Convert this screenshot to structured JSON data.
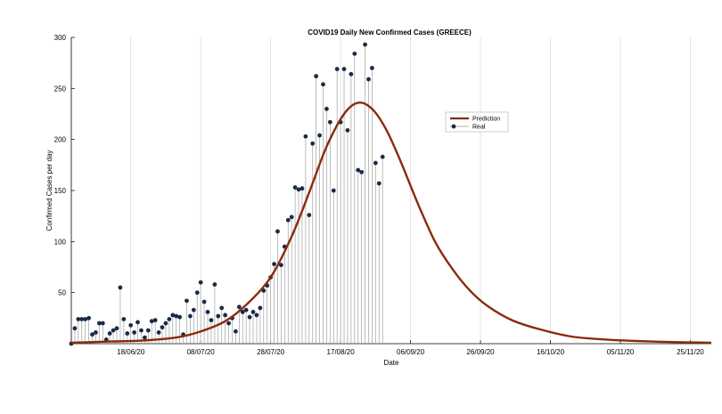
{
  "chart_data": {
    "type": "line",
    "title": "COVID19 Daily New Confirmed Cases (GREECE)",
    "xlabel": "Date",
    "ylabel": "Confirmed Cases per day",
    "ylim": [
      0,
      300
    ],
    "xlim": [
      "2020-06-01",
      "2020-12-01"
    ],
    "grid": "vertical",
    "legend_position": "upper-right",
    "y_ticks": [
      50,
      100,
      150,
      200,
      250,
      300
    ],
    "x_ticks": [
      {
        "date": "2020-06-18",
        "label": "18/06/20"
      },
      {
        "date": "2020-07-08",
        "label": "08/07/20"
      },
      {
        "date": "2020-07-28",
        "label": "28/07/20"
      },
      {
        "date": "2020-08-17",
        "label": "17/08/20"
      },
      {
        "date": "2020-09-06",
        "label": "06/09/20"
      },
      {
        "date": "2020-09-26",
        "label": "26/09/20"
      },
      {
        "date": "2020-10-16",
        "label": "16/10/20"
      },
      {
        "date": "2020-11-05",
        "label": "05/11/20"
      },
      {
        "date": "2020-11-25",
        "label": "25/11/20"
      }
    ],
    "series": [
      {
        "name": "Prediction",
        "style": "line",
        "color": "#8b2a0a",
        "points": [
          [
            "2020-06-01",
            1
          ],
          [
            "2020-06-11",
            2
          ],
          [
            "2020-06-21",
            3
          ],
          [
            "2020-07-01",
            6
          ],
          [
            "2020-07-08",
            12
          ],
          [
            "2020-07-15",
            22
          ],
          [
            "2020-07-21",
            38
          ],
          [
            "2020-07-28",
            65
          ],
          [
            "2020-08-03",
            105
          ],
          [
            "2020-08-08",
            148
          ],
          [
            "2020-08-13",
            193
          ],
          [
            "2020-08-18",
            225
          ],
          [
            "2020-08-22",
            236
          ],
          [
            "2020-08-26",
            230
          ],
          [
            "2020-08-30",
            210
          ],
          [
            "2020-09-03",
            180
          ],
          [
            "2020-09-08",
            138
          ],
          [
            "2020-09-13",
            100
          ],
          [
            "2020-09-18",
            73
          ],
          [
            "2020-09-23",
            52
          ],
          [
            "2020-09-28",
            37
          ],
          [
            "2020-10-05",
            23
          ],
          [
            "2020-10-13",
            14
          ],
          [
            "2020-10-22",
            7
          ],
          [
            "2020-11-01",
            4
          ],
          [
            "2020-11-15",
            2
          ],
          [
            "2020-12-01",
            1
          ]
        ]
      },
      {
        "name": "Real",
        "style": "stem",
        "color": "#1a2a48",
        "points": [
          [
            "2020-06-01",
            0
          ],
          [
            "2020-06-02",
            15
          ],
          [
            "2020-06-03",
            24
          ],
          [
            "2020-06-04",
            24
          ],
          [
            "2020-06-05",
            24
          ],
          [
            "2020-06-06",
            25
          ],
          [
            "2020-06-07",
            9
          ],
          [
            "2020-06-08",
            11
          ],
          [
            "2020-06-09",
            20
          ],
          [
            "2020-06-10",
            20
          ],
          [
            "2020-06-11",
            4
          ],
          [
            "2020-06-12",
            10
          ],
          [
            "2020-06-13",
            13
          ],
          [
            "2020-06-14",
            15
          ],
          [
            "2020-06-15",
            55
          ],
          [
            "2020-06-16",
            24
          ],
          [
            "2020-06-17",
            10
          ],
          [
            "2020-06-18",
            18
          ],
          [
            "2020-06-19",
            11
          ],
          [
            "2020-06-20",
            21
          ],
          [
            "2020-06-21",
            13
          ],
          [
            "2020-06-22",
            6
          ],
          [
            "2020-06-23",
            13
          ],
          [
            "2020-06-24",
            22
          ],
          [
            "2020-06-25",
            23
          ],
          [
            "2020-06-26",
            11
          ],
          [
            "2020-06-27",
            16
          ],
          [
            "2020-06-28",
            20
          ],
          [
            "2020-06-29",
            24
          ],
          [
            "2020-06-30",
            28
          ],
          [
            "2020-07-01",
            27
          ],
          [
            "2020-07-02",
            26
          ],
          [
            "2020-07-03",
            9
          ],
          [
            "2020-07-04",
            42
          ],
          [
            "2020-07-05",
            27
          ],
          [
            "2020-07-06",
            33
          ],
          [
            "2020-07-07",
            50
          ],
          [
            "2020-07-08",
            60
          ],
          [
            "2020-07-09",
            41
          ],
          [
            "2020-07-10",
            31
          ],
          [
            "2020-07-11",
            23
          ],
          [
            "2020-07-12",
            58
          ],
          [
            "2020-07-13",
            27
          ],
          [
            "2020-07-14",
            35
          ],
          [
            "2020-07-15",
            28
          ],
          [
            "2020-07-16",
            20
          ],
          [
            "2020-07-17",
            25
          ],
          [
            "2020-07-18",
            12
          ],
          [
            "2020-07-19",
            36
          ],
          [
            "2020-07-20",
            31
          ],
          [
            "2020-07-21",
            33
          ],
          [
            "2020-07-22",
            26
          ],
          [
            "2020-07-23",
            31
          ],
          [
            "2020-07-24",
            28
          ],
          [
            "2020-07-25",
            35
          ],
          [
            "2020-07-26",
            52
          ],
          [
            "2020-07-27",
            57
          ],
          [
            "2020-07-28",
            65
          ],
          [
            "2020-07-29",
            78
          ],
          [
            "2020-07-30",
            110
          ],
          [
            "2020-07-31",
            77
          ],
          [
            "2020-08-01",
            95
          ],
          [
            "2020-08-02",
            121
          ],
          [
            "2020-08-03",
            124
          ],
          [
            "2020-08-04",
            153
          ],
          [
            "2020-08-05",
            151
          ],
          [
            "2020-08-06",
            152
          ],
          [
            "2020-08-07",
            203
          ],
          [
            "2020-08-08",
            126
          ],
          [
            "2020-08-09",
            196
          ],
          [
            "2020-08-10",
            262
          ],
          [
            "2020-08-11",
            204
          ],
          [
            "2020-08-12",
            254
          ],
          [
            "2020-08-13",
            230
          ],
          [
            "2020-08-14",
            217
          ],
          [
            "2020-08-15",
            150
          ],
          [
            "2020-08-16",
            269
          ],
          [
            "2020-08-17",
            217
          ],
          [
            "2020-08-18",
            269
          ],
          [
            "2020-08-19",
            209
          ],
          [
            "2020-08-20",
            264
          ],
          [
            "2020-08-21",
            284
          ],
          [
            "2020-08-22",
            170
          ],
          [
            "2020-08-23",
            168
          ],
          [
            "2020-08-24",
            293
          ],
          [
            "2020-08-25",
            259
          ],
          [
            "2020-08-26",
            270
          ],
          [
            "2020-08-27",
            177
          ],
          [
            "2020-08-28",
            157
          ],
          [
            "2020-08-29",
            183
          ]
        ]
      }
    ]
  }
}
